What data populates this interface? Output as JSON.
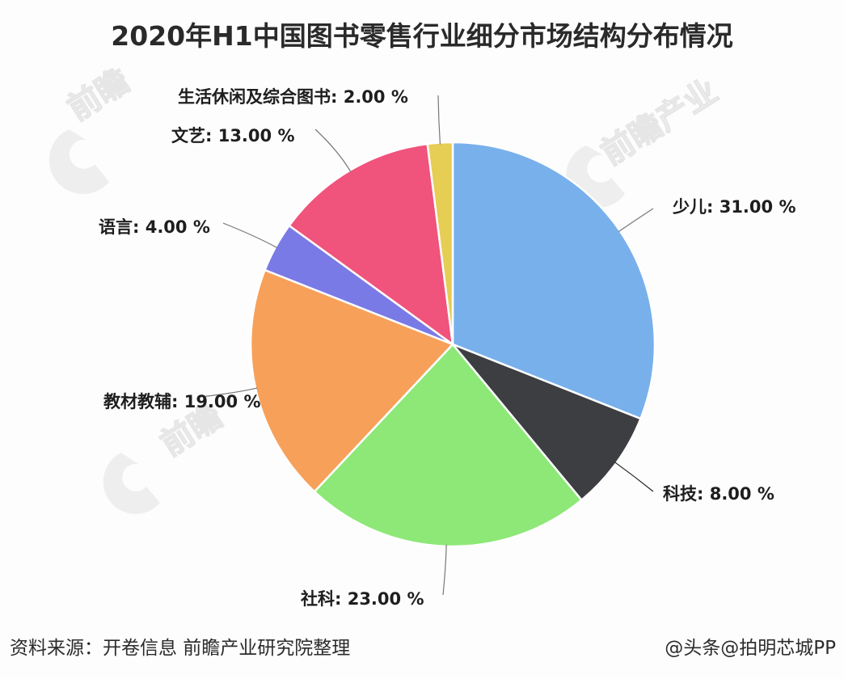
{
  "title": "2020年H1中国图书零售行业细分市场结构分布情况",
  "source": "资料来源：开卷信息 前瞻产业研究院整理",
  "credit": "@头条@拍明芯城PP",
  "watermark": "前瞻产业研究院",
  "chart_data": {
    "type": "pie",
    "title": "2020年H1中国图书零售行业细分市场结构分布情况",
    "unit": "%",
    "start_angle_deg": 0,
    "direction": "clockwise",
    "categories": [
      "少儿",
      "科技",
      "社科",
      "教材教辅",
      "语言",
      "文艺",
      "生活休闲及综合图书"
    ],
    "values": [
      31.0,
      8.0,
      23.0,
      19.0,
      4.0,
      13.0,
      2.0
    ],
    "colors": [
      "#78b0ec",
      "#3d3e42",
      "#8de878",
      "#f7a05a",
      "#7a7ae6",
      "#f0537c",
      "#e6cd54"
    ],
    "labels": [
      "少儿: 31.00 %",
      "科技: 8.00 %",
      "社科: 23.00 %",
      "教材教辅: 19.00 %",
      "语言: 4.00 %",
      "文艺: 13.00 %",
      "生活休闲及综合图书: 2.00 %"
    ],
    "legend": "none (labels with leader lines)"
  }
}
